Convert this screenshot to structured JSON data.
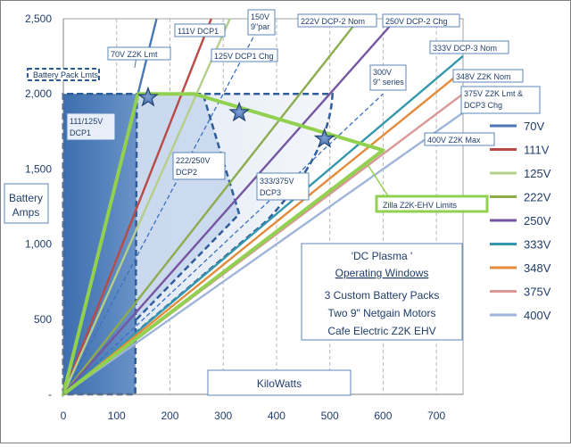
{
  "chart_data": {
    "type": "line",
    "title": "",
    "xlabel": "KiloWatts",
    "ylabel": "Battery Amps",
    "xlim": [
      0,
      750
    ],
    "ylim": [
      0,
      2500
    ],
    "x_ticks": [
      "0",
      "100",
      "200",
      "300",
      "400",
      "500",
      "600",
      "700"
    ],
    "y_ticks": [
      "-",
      "500",
      "1,000",
      "1,500",
      "2,000",
      "2,500"
    ],
    "grid": "vertical dashed",
    "legend_position": "right",
    "series": [
      {
        "name": "70V",
        "color": "#4a78b4",
        "x": [
          0,
          175
        ],
        "y": [
          0,
          2500
        ]
      },
      {
        "name": "111V",
        "color": "#b84a47",
        "x": [
          0,
          277.5
        ],
        "y": [
          0,
          2500
        ]
      },
      {
        "name": "125V",
        "color": "#b3cf8a",
        "x": [
          0,
          312.5
        ],
        "y": [
          0,
          2500
        ]
      },
      {
        "name": "222V",
        "color": "#8cac4e",
        "x": [
          0,
          555
        ],
        "y": [
          0,
          2500
        ]
      },
      {
        "name": "250V",
        "color": "#7556a0",
        "x": [
          0,
          625
        ],
        "y": [
          0,
          2500
        ]
      },
      {
        "name": "333V",
        "color": "#3597ae",
        "x": [
          0,
          750
        ],
        "y": [
          0,
          2252
        ]
      },
      {
        "name": "348V",
        "color": "#e48a3b",
        "x": [
          0,
          750
        ],
        "y": [
          0,
          2155
        ]
      },
      {
        "name": "375V",
        "color": "#d99795",
        "x": [
          0,
          750
        ],
        "y": [
          0,
          2000
        ]
      },
      {
        "name": "400V",
        "color": "#9eb4d8",
        "x": [
          0,
          750
        ],
        "y": [
          0,
          1875
        ]
      }
    ],
    "reference_lines": [
      {
        "label": "150V 9\"par",
        "x": [
          0,
          375
        ],
        "y": [
          0,
          2500
        ]
      },
      {
        "label": "300V 9\" series",
        "x": [
          0,
          600
        ],
        "y": [
          0,
          2000
        ]
      }
    ],
    "zilla_limits": {
      "label": "Zilla Z2K-EHV Limits",
      "x": [
        0,
        140,
        245,
        600,
        0
      ],
      "y": [
        0,
        2000,
        2000,
        1625,
        0
      ]
    },
    "stars": {
      "x": [
        159,
        330,
        490
      ],
      "y": [
        1975,
        1875,
        1700
      ]
    },
    "windows": [
      {
        "label": "111/125V DCP1",
        "x": [
          0,
          0,
          138,
          135
        ],
        "y": [
          0,
          2000,
          2000,
          0
        ]
      },
      {
        "label": "222/250V DCP2",
        "x": [
          0,
          0,
          500,
          350,
          0
        ],
        "y": [
          0,
          2000,
          2000,
          1300,
          0
        ]
      },
      {
        "label": "333/375V DCP3",
        "x": [
          0,
          0,
          500,
          0
        ],
        "y": [
          0,
          2000,
          2000,
          0
        ]
      }
    ],
    "pack_limit_label": "Battery Pack Lmts",
    "annotations": [
      "70V Z2K  Lmt",
      "111V DCP1",
      "150V 9\"par",
      "125V DCP1 Chg",
      "222V DCP-2 Nom",
      "250V DCP-2 Chg",
      "333V DCP-3 Nom",
      "348V Z2K Nom",
      "375V Z2K Lmt & DCP3 Chg",
      "400V Z2K Max",
      "300V 9\" series"
    ],
    "info_box": [
      "'DC Plasma '",
      "Operating Windows",
      "3 Custom Battery Packs",
      "Two 9\" Netgain Motors",
      "Cafe Electric Z2K EHV"
    ]
  }
}
